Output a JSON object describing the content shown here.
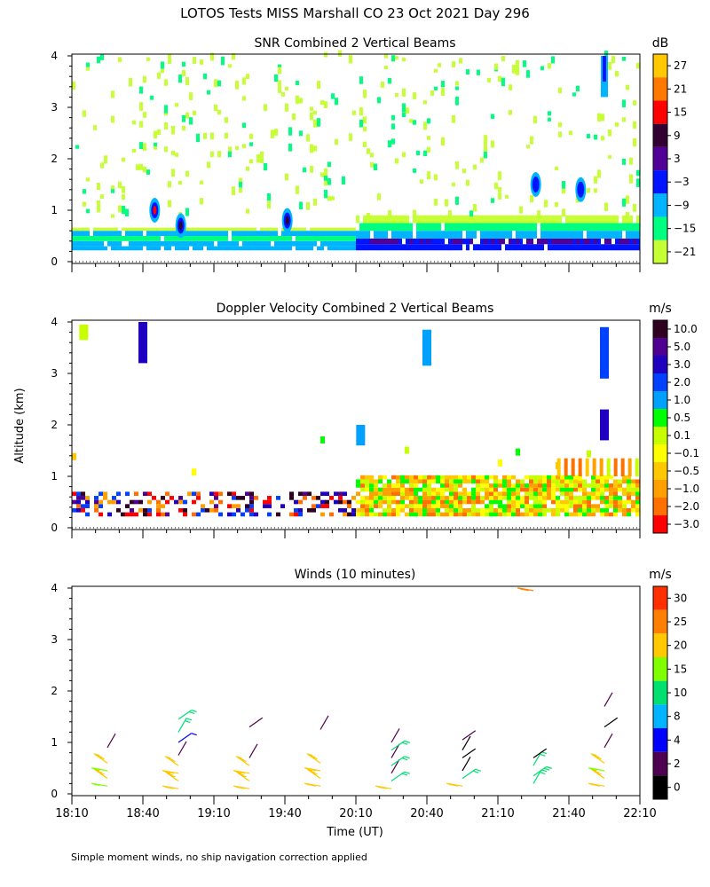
{
  "header": {
    "title": "LOTOS Tests MISS Marshall CO  23 Oct 2021 Day 296"
  },
  "footer": {
    "note": "Simple moment winds, no ship navigation correction applied"
  },
  "axes": {
    "ylabel": "Altitude (km)",
    "xlabel": "Time (UT)",
    "yticks": [
      "0",
      "1",
      "2",
      "3",
      "4"
    ],
    "xticks": [
      "18:10",
      "18:40",
      "19:10",
      "19:40",
      "20:10",
      "20:40",
      "21:10",
      "21:40",
      "22:10"
    ]
  },
  "colors": {
    "snr_scale": [
      "#c6ff33",
      "#00ff80",
      "#00b4ff",
      "#0014ff",
      "#500096",
      "#320032",
      "#ff0000",
      "#ff7800",
      "#ffc800"
    ],
    "velocity_scale": [
      "#ff0000",
      "#ff7000",
      "#ffa000",
      "#ffc800",
      "#ffff00",
      "#c8ff00",
      "#00ff00",
      "#00a0ff",
      "#0040ff",
      "#2000c0",
      "#500090",
      "#300020"
    ],
    "wind_scale": [
      "#000000",
      "#500050",
      "#0000ff",
      "#00b4ff",
      "#00e070",
      "#80ff00",
      "#ffc800",
      "#ff8000",
      "#ff3000"
    ]
  },
  "chart_data": [
    {
      "type": "heatmap",
      "title": "SNR Combined 2 Vertical Beams",
      "xlabel": "Time (UT)",
      "ylabel": "Altitude (km)",
      "x_range": [
        "18:10",
        "22:10"
      ],
      "ylim": [
        0,
        4
      ],
      "colorbar": {
        "unit": "dB",
        "ticks": [
          "27",
          "21",
          "15",
          "9",
          "3",
          "−3",
          "−9",
          "−15",
          "−21"
        ]
      },
      "features": [
        {
          "time": "18:10-22:10",
          "altitude_km": "0.2-0.6",
          "snr_db": "-9 to -15"
        },
        {
          "time": "20:10-22:10",
          "altitude_km": "0.2-0.6",
          "snr_db": "-3 to 3"
        },
        {
          "time": "18:45",
          "altitude_km": "1.0",
          "snr_db": "15"
        },
        {
          "time": "18:55",
          "altitude_km": "0.7",
          "snr_db": "9"
        },
        {
          "time": "19:40",
          "altitude_km": "0.8",
          "snr_db": "9"
        }
      ]
    },
    {
      "type": "heatmap",
      "title": "Doppler Velocity Combined 2 Vertical Beams",
      "xlabel": "Time (UT)",
      "ylabel": "Altitude (km)",
      "x_range": [
        "18:10",
        "22:10"
      ],
      "ylim": [
        0,
        4
      ],
      "colorbar": {
        "unit": "m/s",
        "ticks": [
          "10.0",
          "5.0",
          "3.0",
          "2.0",
          "1.0",
          "0.5",
          "0.1",
          "−0.1",
          "−0.5",
          "−1.0",
          "−2.0",
          "−3.0"
        ]
      },
      "features": [
        {
          "time": "18:10-22:10",
          "altitude_km": "0.2-0.7",
          "velocity_ms": "-1.0 to 1.0"
        },
        {
          "time": "20:10-22:10",
          "altitude_km": "0.2-1.0",
          "velocity_ms": "-0.5 to 0.5"
        },
        {
          "time": "21:55",
          "altitude_km": "3.0-3.8",
          "velocity_ms": "3.0"
        },
        {
          "time": "20:40",
          "altitude_km": "3.3-3.8",
          "velocity_ms": "1.0"
        }
      ]
    },
    {
      "type": "scatter",
      "title": "Winds (10 minutes)",
      "xlabel": "Time (UT)",
      "ylabel": "Altitude (km)",
      "x_range": [
        "18:10",
        "22:10"
      ],
      "ylim": [
        0,
        4
      ],
      "colorbar": {
        "unit": "m/s",
        "ticks": [
          "30",
          "25",
          "20",
          "15",
          "10",
          "8",
          "4",
          "2",
          "0"
        ]
      },
      "profiles": [
        {
          "time": "18:25",
          "altitude_km": [
            0.15,
            0.3,
            0.45,
            0.6,
            0.9
          ],
          "speed_ms": [
            18,
            20,
            16,
            20,
            3
          ]
        },
        {
          "time": "18:55",
          "altitude_km": [
            0.1,
            0.25,
            0.4,
            0.55,
            0.75,
            1.0,
            1.2,
            1.45
          ],
          "speed_ms": [
            24,
            22,
            20,
            21,
            3,
            4,
            13,
            12
          ]
        },
        {
          "time": "19:25",
          "altitude_km": [
            0.1,
            0.25,
            0.4,
            0.55,
            0.7,
            1.3
          ],
          "speed_ms": [
            24,
            22,
            21,
            20,
            3,
            3
          ]
        },
        {
          "time": "19:55",
          "altitude_km": [
            0.15,
            0.3,
            0.45,
            0.6,
            1.25
          ],
          "speed_ms": [
            22,
            21,
            20,
            20,
            3
          ]
        },
        {
          "time": "20:25",
          "altitude_km": [
            0.1,
            0.25,
            0.4,
            0.55,
            0.7,
            0.85,
            1.0
          ],
          "speed_ms": [
            22,
            12,
            3,
            12,
            3,
            12,
            3
          ]
        },
        {
          "time": "20:55",
          "altitude_km": [
            0.15,
            0.3,
            0.45,
            0.7,
            0.85,
            1.05
          ],
          "speed_ms": [
            20,
            12,
            0,
            0,
            0,
            3
          ]
        },
        {
          "time": "21:25",
          "altitude_km": [
            0.2,
            0.35,
            0.55,
            0.7,
            3.95
          ],
          "speed_ms": [
            12,
            12,
            12,
            0,
            25
          ]
        },
        {
          "time": "21:55",
          "altitude_km": [
            0.15,
            0.3,
            0.45,
            0.6,
            0.9,
            1.3,
            1.7
          ],
          "speed_ms": [
            24,
            20,
            18,
            20,
            3,
            0,
            3
          ]
        }
      ]
    }
  ]
}
